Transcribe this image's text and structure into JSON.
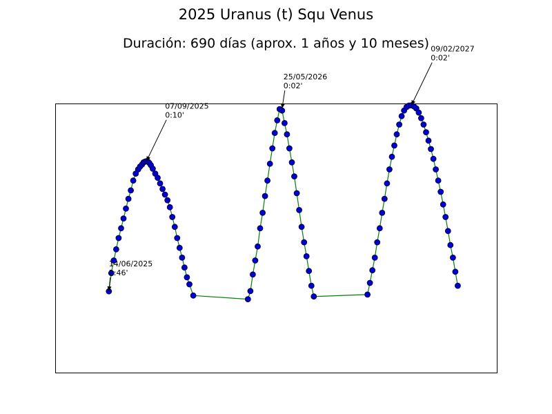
{
  "chart_data": {
    "type": "line",
    "title": "2025 Uranus (t) Squ Venus",
    "subtitle": "Duración: 690 días (aprox. 1 años y 10 meses)",
    "xlabel": "",
    "ylabel": "",
    "grid": false,
    "legend": "none",
    "axes_visible": false,
    "line_color": "#008000",
    "marker_face": "#0000cc",
    "marker_edge": "#000033",
    "annotation_color": "#000000",
    "series": [
      {
        "values": [
          [
            0,
            0.03
          ],
          [
            5,
            0.16
          ],
          [
            10,
            0.25
          ],
          [
            15,
            0.33
          ],
          [
            20,
            0.41
          ],
          [
            25,
            0.48
          ],
          [
            30,
            0.55
          ],
          [
            35,
            0.62
          ],
          [
            40,
            0.69
          ],
          [
            45,
            0.75
          ],
          [
            50,
            0.82
          ],
          [
            55,
            0.87
          ],
          [
            60,
            0.9
          ],
          [
            64,
            0.92
          ],
          [
            68,
            0.935
          ],
          [
            71,
            0.95
          ],
          [
            74,
            0.955
          ],
          [
            77,
            0.958
          ],
          [
            80,
            0.955
          ],
          [
            83,
            0.945
          ],
          [
            86,
            0.93
          ],
          [
            90,
            0.905
          ],
          [
            95,
            0.87
          ],
          [
            100,
            0.84
          ],
          [
            105,
            0.8
          ],
          [
            110,
            0.76
          ],
          [
            115,
            0.72
          ],
          [
            120,
            0.68
          ],
          [
            125,
            0.63
          ],
          [
            130,
            0.56
          ],
          [
            135,
            0.49
          ],
          [
            140,
            0.41
          ],
          [
            145,
            0.34
          ],
          [
            150,
            0.27
          ],
          [
            155,
            0.2
          ],
          [
            160,
            0.13
          ],
          [
            165,
            0.08
          ],
          [
            173,
            0.0
          ],
          [
            285,
            -0.026
          ],
          [
            290,
            0.032
          ],
          [
            295,
            0.15
          ],
          [
            300,
            0.25
          ],
          [
            305,
            0.35
          ],
          [
            310,
            0.48
          ],
          [
            315,
            0.59
          ],
          [
            320,
            0.71
          ],
          [
            325,
            0.82
          ],
          [
            330,
            0.94
          ],
          [
            335,
            1.05
          ],
          [
            340,
            1.16
          ],
          [
            345,
            1.25
          ],
          [
            350,
            1.33
          ],
          [
            355,
            1.32
          ],
          [
            360,
            1.23
          ],
          [
            365,
            1.15
          ],
          [
            370,
            1.05
          ],
          [
            375,
            0.95
          ],
          [
            380,
            0.85
          ],
          [
            385,
            0.73
          ],
          [
            390,
            0.61
          ],
          [
            395,
            0.49
          ],
          [
            400,
            0.38
          ],
          [
            405,
            0.28
          ],
          [
            410,
            0.175
          ],
          [
            415,
            0.07
          ],
          [
            420,
            -0.007
          ],
          [
            530,
            0.007
          ],
          [
            535,
            0.09
          ],
          [
            540,
            0.18
          ],
          [
            545,
            0.27
          ],
          [
            550,
            0.38
          ],
          [
            555,
            0.48
          ],
          [
            560,
            0.59
          ],
          [
            565,
            0.69
          ],
          [
            570,
            0.8
          ],
          [
            575,
            0.9
          ],
          [
            580,
            0.99
          ],
          [
            585,
            1.07
          ],
          [
            590,
            1.15
          ],
          [
            595,
            1.22
          ],
          [
            600,
            1.28
          ],
          [
            605,
            1.32
          ],
          [
            610,
            1.345
          ],
          [
            615,
            1.355
          ],
          [
            620,
            1.357
          ],
          [
            625,
            1.35
          ],
          [
            630,
            1.335
          ],
          [
            635,
            1.305
          ],
          [
            640,
            1.265
          ],
          [
            645,
            1.22
          ],
          [
            650,
            1.165
          ],
          [
            655,
            1.105
          ],
          [
            660,
            1.045
          ],
          [
            665,
            0.975
          ],
          [
            670,
            0.9
          ],
          [
            675,
            0.82
          ],
          [
            680,
            0.74
          ],
          [
            685,
            0.65
          ],
          [
            690,
            0.56
          ],
          [
            695,
            0.46
          ],
          [
            700,
            0.36
          ],
          [
            705,
            0.27
          ],
          [
            710,
            0.17
          ],
          [
            715,
            0.07
          ]
        ]
      }
    ],
    "xlim": [
      -110,
      795
    ],
    "ylim": [
      -0.55,
      1.37
    ],
    "annotations": [
      {
        "x": 0,
        "y": 0.03,
        "date": "14/06/2025",
        "value": "2:46'"
      },
      {
        "x": 77,
        "y": 0.958,
        "date": "07/09/2025",
        "value": "0:10'"
      },
      {
        "x": 355,
        "y": 1.335,
        "date": "25/05/2026",
        "value": "0:02'"
      },
      {
        "x": 620,
        "y": 1.357,
        "date": "09/02/2027",
        "value": "0:02'"
      }
    ]
  }
}
